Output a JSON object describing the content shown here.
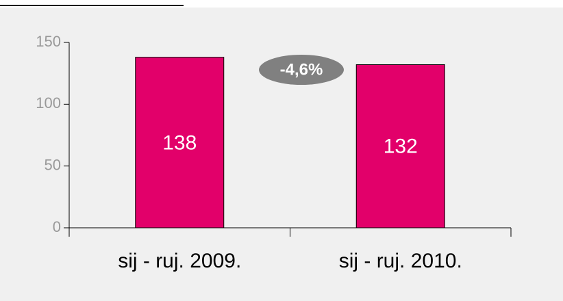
{
  "chart_data": {
    "type": "bar",
    "categories": [
      "sij - ruj. 2009.",
      "sij - ruj. 2010."
    ],
    "values": [
      138,
      132
    ],
    "color": "#e2006a",
    "ylim": [
      0,
      150
    ],
    "yticks": [
      0,
      50,
      100,
      150
    ],
    "annotation": "-4,6%"
  }
}
